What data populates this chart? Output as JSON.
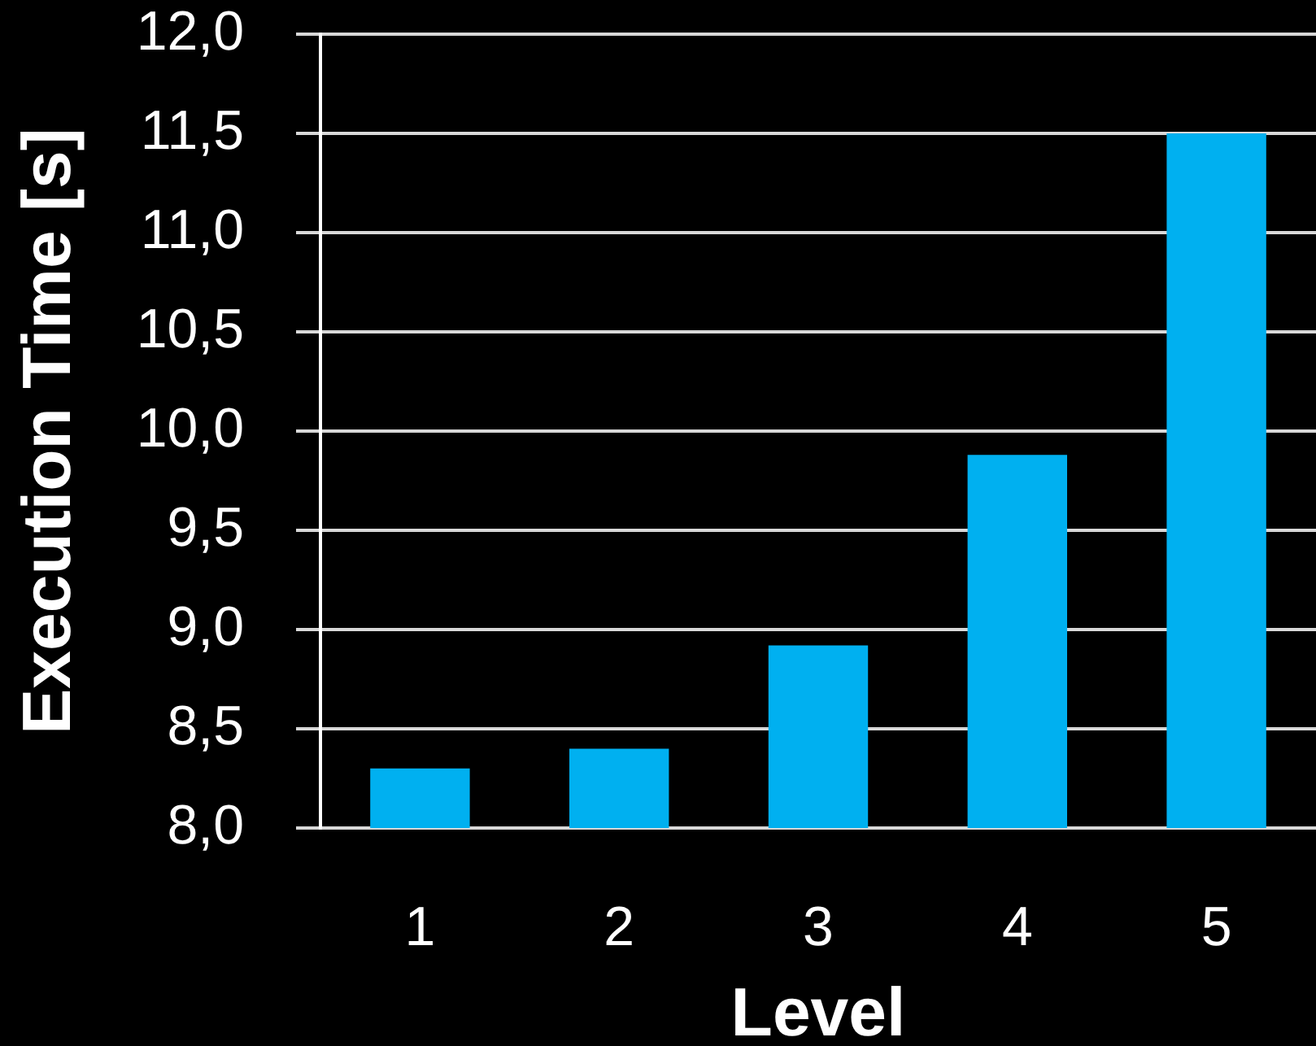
{
  "chart_data": {
    "type": "bar",
    "xlabel": "Level",
    "ylabel": "Execution Time [s]",
    "categories": [
      "1",
      "2",
      "3",
      "4",
      "5"
    ],
    "values": [
      8.3,
      8.4,
      8.92,
      9.88,
      11.5
    ],
    "color": "#00b0f0",
    "ylim": [
      8,
      12
    ],
    "yticks": [
      {
        "value": 8,
        "label": "8,0"
      },
      {
        "value": 8.5,
        "label": "8,5"
      },
      {
        "value": 9,
        "label": "9,0"
      },
      {
        "value": 9.5,
        "label": "9,5"
      },
      {
        "value": 10,
        "label": "10,0"
      },
      {
        "value": 10.5,
        "label": "10,5"
      },
      {
        "value": 11,
        "label": "11,0"
      },
      {
        "value": 11.5,
        "label": "11,5"
      },
      {
        "value": 12,
        "label": "12,0"
      }
    ],
    "grid": "y"
  }
}
